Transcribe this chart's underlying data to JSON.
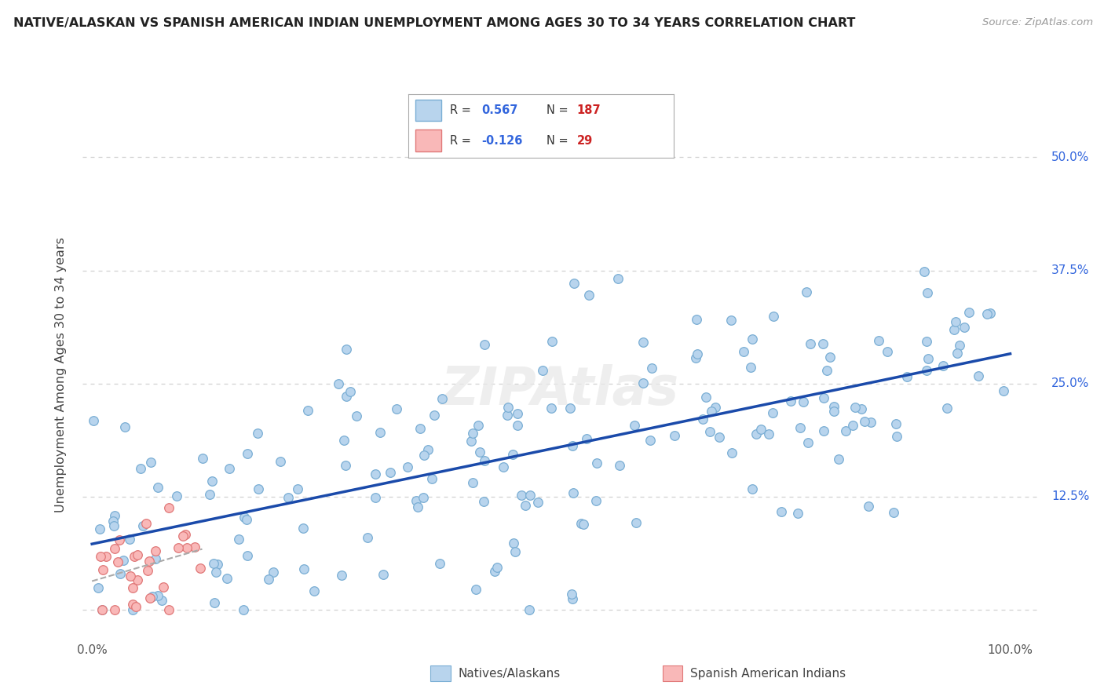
{
  "title": "NATIVE/ALASKAN VS SPANISH AMERICAN INDIAN UNEMPLOYMENT AMONG AGES 30 TO 34 YEARS CORRELATION CHART",
  "source": "Source: ZipAtlas.com",
  "ylabel": "Unemployment Among Ages 30 to 34 years",
  "xlim": [
    -1,
    103
  ],
  "ylim": [
    -3,
    55
  ],
  "yticks": [
    0,
    12.5,
    25.0,
    37.5,
    50.0
  ],
  "yticklabels_right": [
    "",
    "12.5%",
    "25.0%",
    "37.5%",
    "50.0%"
  ],
  "xtick_positions": [
    0,
    12.5,
    25.0,
    37.5,
    50.0,
    62.5,
    75.0,
    87.5,
    100.0
  ],
  "xticklabels": [
    "0.0%",
    "",
    "",
    "",
    "",
    "",
    "",
    "",
    "100.0%"
  ],
  "native_color": "#b8d4ed",
  "native_edge_color": "#7aaed4",
  "spanish_color": "#f9b8b8",
  "spanish_edge_color": "#e07878",
  "line_native_color": "#1a4aaa",
  "line_spanish_color": "#aaaaaa",
  "native_R": 0.567,
  "native_N": 187,
  "spanish_R": -0.126,
  "spanish_N": 29,
  "background_color": "#ffffff",
  "grid_color": "#cccccc",
  "watermark": "ZIPAtlas",
  "legend_r1_val": "0.567",
  "legend_n1_val": "187",
  "legend_r2_val": "-0.126",
  "legend_n2_val": "29",
  "val_color_blue": "#3366dd",
  "val_color_red": "#cc2222",
  "label_native": "Natives/Alaskans",
  "label_spanish": "Spanish American Indians"
}
